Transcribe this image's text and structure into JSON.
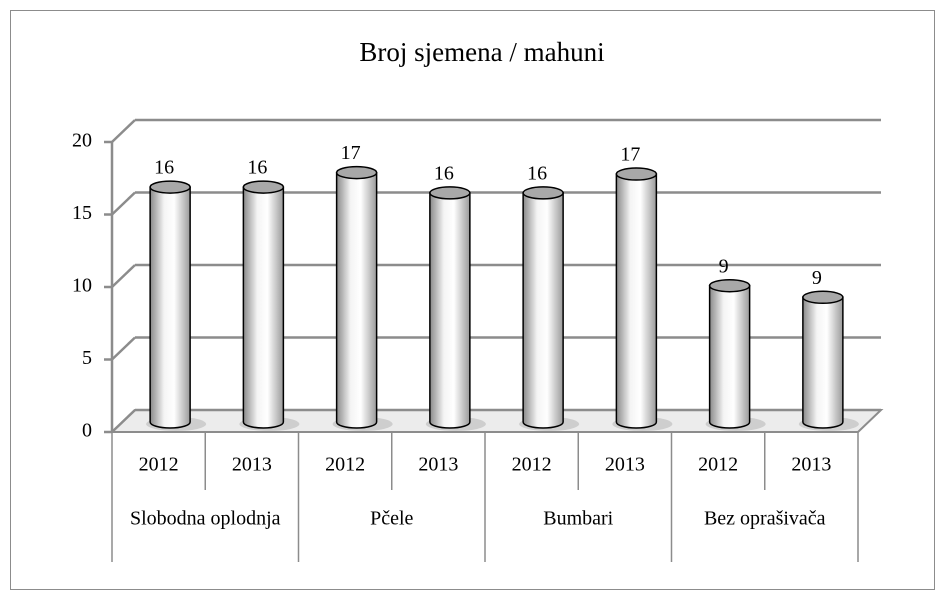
{
  "chart_data": {
    "type": "bar3d",
    "title": "Broj sjemena / mahuni",
    "categories": [
      "2012",
      "2013",
      "2012",
      "2013",
      "2012",
      "2013",
      "2012",
      "2013"
    ],
    "groups": [
      "Slobodna oplodnja",
      "Pčele",
      "Bumbari",
      "Bez oprašivača"
    ],
    "values": [
      16.2,
      16.2,
      17.2,
      15.8,
      15.8,
      17.1,
      9.4,
      8.6
    ],
    "value_labels": [
      "16",
      "16",
      "17",
      "16",
      "16",
      "17",
      "9",
      "9"
    ],
    "ylim": [
      0,
      20
    ],
    "yticks": [
      0,
      5,
      10,
      15,
      20
    ],
    "grid": true
  }
}
